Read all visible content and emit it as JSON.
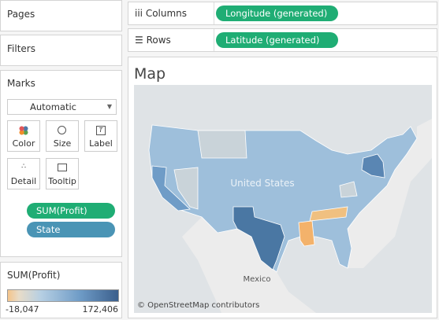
{
  "side": {
    "pages": "Pages",
    "filters": "Filters",
    "marks": {
      "title": "Marks",
      "mark_type": "Automatic",
      "buttons": [
        "Color",
        "Size",
        "Label",
        "Detail",
        "Tooltip"
      ],
      "fields": [
        "SUM(Profit)",
        "State"
      ]
    },
    "legend": {
      "title": "SUM(Profit)",
      "min": "-18,047",
      "max": "172,406"
    }
  },
  "shelves": {
    "columns": {
      "label": "Columns",
      "field": "Longitude (generated)"
    },
    "rows": {
      "label": "Rows",
      "field": "Latitude (generated)"
    }
  },
  "view": {
    "title": "Map",
    "labels": [
      "United States",
      "Mexico"
    ],
    "attribution": "© OpenStreetMap contributors"
  }
}
